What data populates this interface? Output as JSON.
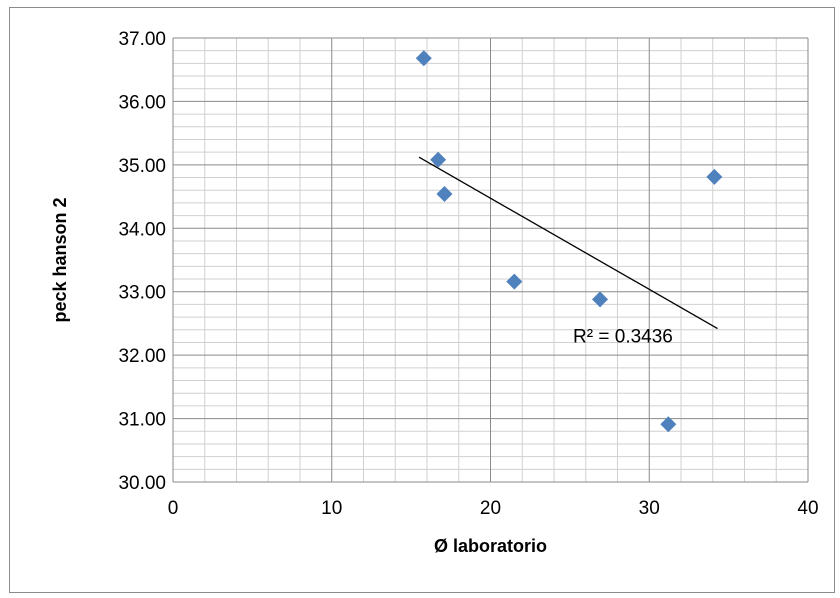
{
  "chart_data": {
    "type": "scatter",
    "title": "",
    "xlabel": "Ø laboratorio",
    "ylabel": "peck hanson 2",
    "xlim": [
      0,
      40
    ],
    "ylim": [
      30,
      37
    ],
    "x_ticks": [
      0,
      10,
      20,
      30,
      40
    ],
    "y_ticks": [
      30,
      31,
      32,
      33,
      34,
      35,
      36,
      37
    ],
    "x_tick_labels": [
      "0",
      "10",
      "20",
      "30",
      "40"
    ],
    "y_tick_labels": [
      "30.00",
      "31.00",
      "32.00",
      "33.00",
      "34.00",
      "35.00",
      "36.00",
      "37.00"
    ],
    "x_minor_step": 2,
    "y_minor_step": 0.2,
    "grid": true,
    "marker": "diamond",
    "marker_color": "#4f81bd",
    "points": [
      {
        "x": 15.8,
        "y": 36.68
      },
      {
        "x": 16.7,
        "y": 35.08
      },
      {
        "x": 17.1,
        "y": 34.54
      },
      {
        "x": 21.5,
        "y": 33.16
      },
      {
        "x": 26.9,
        "y": 32.88
      },
      {
        "x": 31.2,
        "y": 30.91
      },
      {
        "x": 34.1,
        "y": 34.81
      }
    ],
    "trendline": {
      "type": "linear",
      "x_start": 15.5,
      "y_start": 35.12,
      "x_end": 34.3,
      "y_end": 32.42,
      "color": "#000000",
      "r_squared_label": "R² = 0.3436"
    }
  }
}
